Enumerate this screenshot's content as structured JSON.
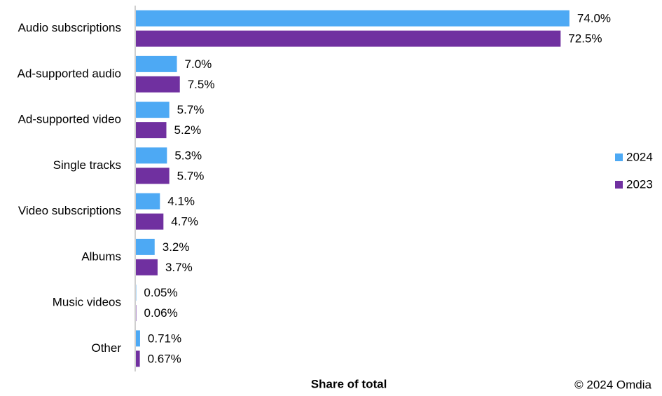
{
  "chart_data": {
    "type": "bar",
    "orientation": "horizontal",
    "x_label": "Share of total",
    "source": "© 2024 Omdia",
    "categories": [
      "Audio subscriptions",
      "Ad-supported audio",
      "Ad-supported video",
      "Single tracks",
      "Video subscriptions",
      "Albums",
      "Music videos",
      "Other"
    ],
    "series": [
      {
        "name": "2024",
        "color": "#4da9f4",
        "values": [
          74.0,
          7.0,
          5.7,
          5.3,
          4.1,
          3.2,
          0.05,
          0.71
        ],
        "value_labels": [
          "74.0%",
          "7.0%",
          "5.7%",
          "5.3%",
          "4.1%",
          "3.2%",
          "0.05%",
          "0.71%"
        ]
      },
      {
        "name": "2023",
        "color": "#7030a0",
        "values": [
          72.5,
          7.5,
          5.2,
          5.7,
          4.7,
          3.7,
          0.06,
          0.67
        ],
        "value_labels": [
          "72.5%",
          "7.5%",
          "5.2%",
          "5.7%",
          "4.7%",
          "3.7%",
          "0.06%",
          "0.67%"
        ]
      }
    ],
    "xlim": [
      0,
      80
    ],
    "legend": "right"
  }
}
